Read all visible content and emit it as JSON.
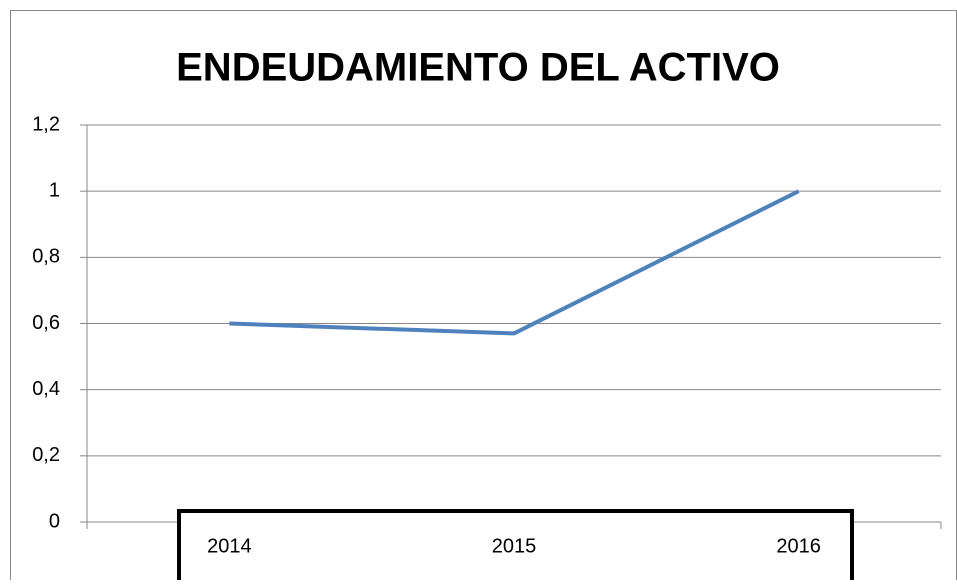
{
  "chart_data": {
    "type": "line",
    "title": "ENDEUDAMIENTO DEL ACTIVO",
    "categories": [
      "2014",
      "2015",
      "2016"
    ],
    "series": [
      {
        "name": "ENDEUDAMIENTO DEL ACTIVO",
        "color": "#4f81bd",
        "values": [
          0.6,
          0.57,
          1.0
        ]
      }
    ],
    "ylim": [
      0,
      1.2
    ],
    "yticks": [
      0,
      {
        "value": 0.2,
        "label": "0,2"
      },
      {
        "value": 0.4,
        "label": "0,4"
      },
      {
        "value": 0.6,
        "label": "0,6"
      },
      {
        "value": 0.8,
        "label": "0,8"
      },
      1,
      {
        "value": 1.2,
        "label": "1,2"
      }
    ],
    "grid": true
  }
}
